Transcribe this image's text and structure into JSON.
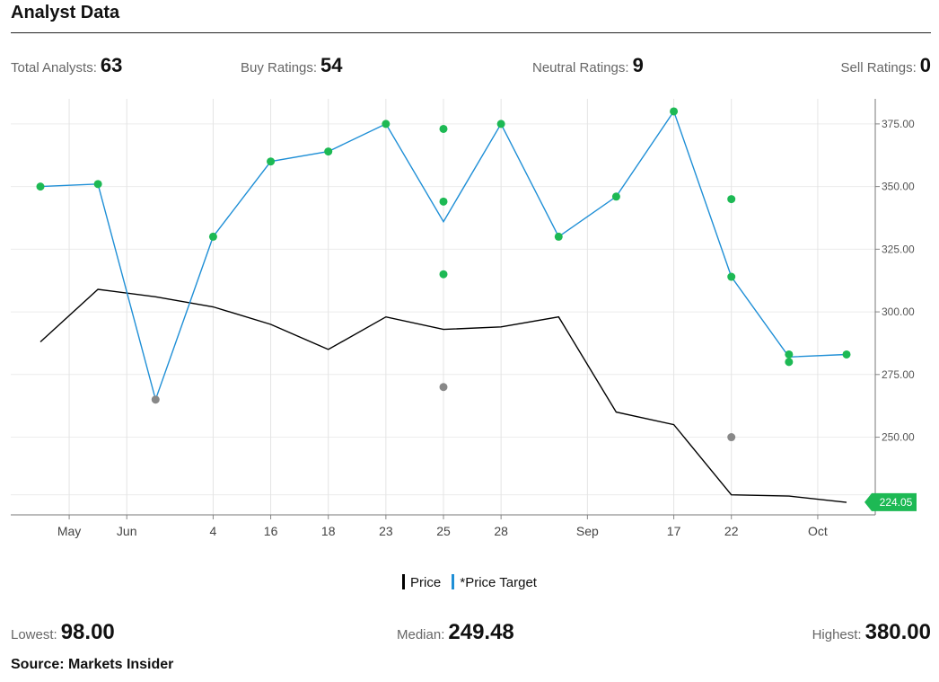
{
  "header": {
    "title": "Analyst Data"
  },
  "stats": {
    "total": {
      "label": "Total Analysts:",
      "value": "63"
    },
    "buy": {
      "label": "Buy Ratings:",
      "value": "54"
    },
    "neutral": {
      "label": "Neutral Ratings:",
      "value": "9"
    },
    "sell": {
      "label": "Sell Ratings:",
      "value": "0"
    }
  },
  "summary": {
    "lowest": {
      "label": "Lowest:",
      "value": "98.00"
    },
    "median": {
      "label": "Median:",
      "value": "249.48"
    },
    "highest": {
      "label": "Highest:",
      "value": "380.00"
    }
  },
  "source": "Source: Markets Insider",
  "chart_data": {
    "type": "line",
    "title": "",
    "xlabel": "",
    "ylabel": "",
    "x_ticks": [
      "May",
      "Jun",
      "4",
      "16",
      "18",
      "23",
      "25",
      "28",
      "Sep",
      "17",
      "22",
      "Oct"
    ],
    "x_tick_slots": [
      0.5,
      1.5,
      3,
      4,
      5,
      6,
      7,
      8,
      9.5,
      11,
      12,
      13.5
    ],
    "x_range": [
      -0.5,
      14.5
    ],
    "ylim": [
      219,
      385
    ],
    "y_ticks": [
      "375.00",
      "350.00",
      "325.00",
      "300.00",
      "275.00",
      "250.00"
    ],
    "y_tick_values": [
      375,
      350,
      325,
      300,
      275,
      250
    ],
    "last_price_label": "224.05",
    "last_price": 224.05,
    "grid": true,
    "legend": {
      "position": "bottom",
      "items": [
        {
          "name": "Price",
          "color": "#000000"
        },
        {
          "name": "*Price Target",
          "color": "#1f8fd6"
        }
      ]
    },
    "price": {
      "x": [
        0,
        1,
        2,
        3,
        4,
        5,
        6,
        7,
        8,
        9,
        10,
        11,
        12,
        13,
        14
      ],
      "values": [
        288,
        309,
        306,
        302,
        295,
        285,
        298,
        293,
        294,
        298,
        260,
        255,
        227,
        226.5,
        224
      ]
    },
    "target_line": {
      "x": [
        0,
        1,
        2,
        3,
        4,
        5,
        6,
        7,
        8,
        9,
        10,
        11,
        12,
        13,
        14
      ],
      "values": [
        350,
        351,
        265,
        330,
        360,
        364,
        375,
        336,
        375,
        330,
        346,
        380,
        314,
        282,
        283
      ]
    },
    "ratings": [
      {
        "x": 0,
        "value": 350,
        "rating": "buy"
      },
      {
        "x": 1,
        "value": 351,
        "rating": "buy"
      },
      {
        "x": 2,
        "value": 265,
        "rating": "neutral"
      },
      {
        "x": 3,
        "value": 330,
        "rating": "buy"
      },
      {
        "x": 4,
        "value": 360,
        "rating": "buy"
      },
      {
        "x": 5,
        "value": 364,
        "rating": "buy"
      },
      {
        "x": 6,
        "value": 375,
        "rating": "buy"
      },
      {
        "x": 7,
        "value": 373,
        "rating": "buy"
      },
      {
        "x": 7,
        "value": 344,
        "rating": "buy"
      },
      {
        "x": 7,
        "value": 315,
        "rating": "buy"
      },
      {
        "x": 7,
        "value": 270,
        "rating": "neutral"
      },
      {
        "x": 8,
        "value": 375,
        "rating": "buy"
      },
      {
        "x": 9,
        "value": 330,
        "rating": "buy"
      },
      {
        "x": 10,
        "value": 346,
        "rating": "buy"
      },
      {
        "x": 11,
        "value": 380,
        "rating": "buy"
      },
      {
        "x": 12,
        "value": 345,
        "rating": "buy"
      },
      {
        "x": 12,
        "value": 314,
        "rating": "buy"
      },
      {
        "x": 12,
        "value": 250,
        "rating": "neutral"
      },
      {
        "x": 13,
        "value": 283,
        "rating": "buy"
      },
      {
        "x": 13,
        "value": 280,
        "rating": "buy"
      },
      {
        "x": 14,
        "value": 283,
        "rating": "buy"
      }
    ],
    "colors": {
      "buy": "#1db954",
      "neutral": "#888888",
      "price": "#000000",
      "target": "#1f8fd6",
      "badge": "#1db954"
    }
  }
}
